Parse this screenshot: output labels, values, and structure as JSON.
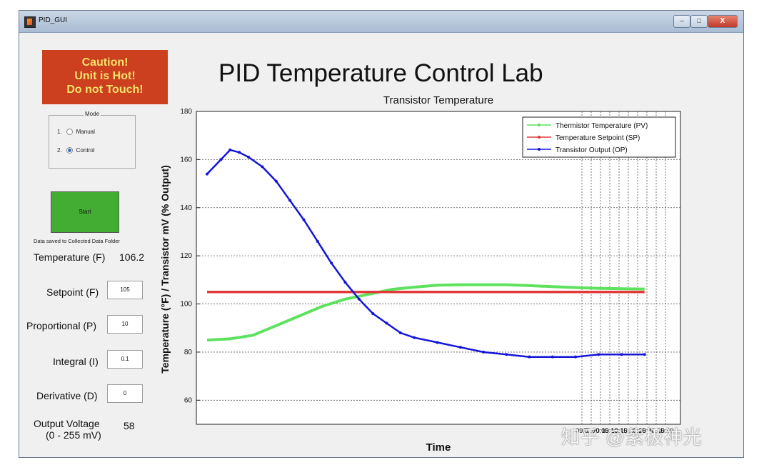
{
  "window": {
    "title": "PID_GUI",
    "minimize": "–",
    "maximize": "□",
    "close": "X"
  },
  "caution": {
    "line1": "Caution!",
    "line2": "Unit is Hot!",
    "line3": "Do not Touch!"
  },
  "mode": {
    "legend": "Mode",
    "options": [
      {
        "num": "1.",
        "label": "Manual",
        "selected": false
      },
      {
        "num": "2.",
        "label": "Control",
        "selected": true
      }
    ]
  },
  "start_label": "Start",
  "saved_note": "Data saved to Collected Data Folder",
  "temperature": {
    "label": "Temperature (F)",
    "value": "106.2"
  },
  "setpoint": {
    "label": "Setpoint (F)",
    "value": "105"
  },
  "proportional": {
    "label": "Proportional (P)",
    "value": "10"
  },
  "integral": {
    "label": "Integral (I)",
    "value": "0.1"
  },
  "derivative": {
    "label": "Derivative (D)",
    "value": "0"
  },
  "output_voltage": {
    "label1": "Output Voltage",
    "label2": "(0 - 255 mV)",
    "value": "58"
  },
  "app_title": "PID Temperature Control Lab",
  "watermark": "知乎 @紫极神光",
  "colors": {
    "pv": "#5ee25e",
    "sp": "#e23a3a",
    "op": "#1515d8",
    "caution_bg": "#cc3f1f",
    "start_bg": "#43ad33"
  },
  "chart_data": {
    "type": "line",
    "title": "Transistor Temperature",
    "xlabel": "Time",
    "ylabel": "Temperature (°F) / Transistor mV (% Output)",
    "ylim": [
      50,
      180
    ],
    "xlim": [
      0,
      100
    ],
    "yticks": [
      60,
      80,
      100,
      120,
      140,
      160,
      180
    ],
    "xtick_labels": [
      "09:5",
      "10:00",
      "10:05",
      "10:10",
      "10:15",
      "10:20",
      "10:25",
      "10:30",
      "10:35",
      "10:40"
    ],
    "legend": [
      "Thermistor Temperature (PV)",
      "Temperature Setpoint (SP)",
      "Transistor Output (OP)"
    ],
    "legend_position": "top-right",
    "series": [
      {
        "name": "Thermistor Temperature (PV)",
        "x": [
          0,
          5,
          10,
          15,
          20,
          25,
          30,
          35,
          40,
          45,
          50,
          55,
          60,
          65,
          70,
          75,
          80,
          85,
          90,
          95
        ],
        "y": [
          85,
          85.5,
          87,
          91,
          95,
          99,
          102,
          104,
          106,
          107,
          107.8,
          108,
          108,
          108,
          107.6,
          107.2,
          106.8,
          106.5,
          106.3,
          106.2
        ]
      },
      {
        "name": "Temperature Setpoint (SP)",
        "x": [
          0,
          95
        ],
        "y": [
          105,
          105
        ]
      },
      {
        "name": "Transistor Output (OP)",
        "x": [
          0,
          3,
          5,
          7,
          9,
          12,
          15,
          18,
          21,
          24,
          27,
          30,
          33,
          36,
          39,
          42,
          45,
          50,
          55,
          60,
          65,
          70,
          75,
          80,
          85,
          90,
          95
        ],
        "y": [
          154,
          160,
          164,
          163,
          161,
          157,
          151,
          143,
          135,
          126,
          117,
          109,
          102,
          96,
          92,
          88,
          86,
          84,
          82,
          80,
          79,
          78,
          78,
          78,
          79,
          79,
          79
        ]
      }
    ]
  }
}
